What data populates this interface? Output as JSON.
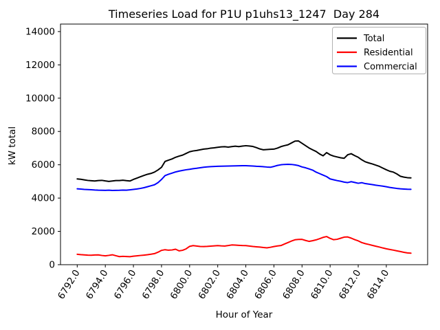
{
  "title": "Timeseries Load for P1U p1uhs13_1247  Day 284",
  "chart_data": {
    "type": "line",
    "title": "Timeseries Load for P1U p1uhs13_1247  Day 284",
    "xlabel": "Hour of Year",
    "ylabel": "kW total",
    "xlim": [
      6790.81,
      6816.94
    ],
    "ylim": [
      0,
      14450
    ],
    "grid": false,
    "legend_position": "upper right",
    "x_tick_rotation_deg": 58,
    "x_ticks": {
      "values": [
        6792,
        6794,
        6796,
        6798,
        6800,
        6802,
        6804,
        6806,
        6808,
        6810,
        6812,
        6814
      ],
      "labels": [
        "6792.0",
        "6794.0",
        "6796.0",
        "6798.0",
        "6800.0",
        "6802.0",
        "6804.0",
        "6806.0",
        "6808.0",
        "6810.0",
        "6812.0",
        "6814.0"
      ]
    },
    "y_ticks": {
      "values": [
        0,
        2000,
        4000,
        6000,
        8000,
        10000,
        12000,
        14000
      ],
      "labels": [
        "0",
        "2000",
        "4000",
        "6000",
        "8000",
        "10000",
        "12000",
        "14000"
      ]
    },
    "x_start": 6792.0,
    "x_step": 0.25,
    "n_points": 96,
    "series": [
      {
        "name": "Total",
        "color": "#000000",
        "values": [
          5150,
          5130,
          5095,
          5060,
          5040,
          5025,
          5050,
          5065,
          5030,
          5000,
          5025,
          5050,
          5050,
          5075,
          5045,
          5025,
          5120,
          5200,
          5280,
          5360,
          5430,
          5480,
          5560,
          5690,
          5850,
          6200,
          6280,
          6350,
          6450,
          6520,
          6580,
          6680,
          6780,
          6830,
          6860,
          6900,
          6940,
          6960,
          7000,
          7020,
          7050,
          7075,
          7085,
          7060,
          7090,
          7115,
          7090,
          7120,
          7145,
          7125,
          7100,
          7030,
          6950,
          6900,
          6915,
          6930,
          6940,
          7000,
          7090,
          7150,
          7200,
          7310,
          7420,
          7430,
          7290,
          7150,
          7010,
          6900,
          6800,
          6650,
          6540,
          6730,
          6600,
          6520,
          6470,
          6420,
          6390,
          6600,
          6665,
          6550,
          6450,
          6300,
          6180,
          6110,
          6050,
          5980,
          5905,
          5800,
          5700,
          5610,
          5560,
          5450,
          5310,
          5260,
          5225,
          5215
        ]
      },
      {
        "name": "Residential",
        "color": "#ff0000",
        "values": [
          625,
          605,
          590,
          575,
          570,
          585,
          590,
          555,
          530,
          560,
          595,
          540,
          485,
          500,
          490,
          480,
          510,
          530,
          555,
          575,
          600,
          630,
          665,
          750,
          860,
          900,
          870,
          885,
          930,
          830,
          865,
          950,
          1100,
          1145,
          1120,
          1095,
          1090,
          1100,
          1115,
          1130,
          1145,
          1130,
          1120,
          1150,
          1185,
          1175,
          1160,
          1150,
          1145,
          1120,
          1095,
          1075,
          1060,
          1030,
          1010,
          1045,
          1090,
          1125,
          1150,
          1240,
          1330,
          1420,
          1495,
          1515,
          1520,
          1455,
          1400,
          1440,
          1490,
          1560,
          1640,
          1690,
          1580,
          1500,
          1525,
          1590,
          1655,
          1665,
          1595,
          1505,
          1430,
          1330,
          1265,
          1215,
          1160,
          1110,
          1060,
          1005,
          955,
          915,
          875,
          830,
          790,
          745,
          705,
          690
        ]
      },
      {
        "name": "Commercial",
        "color": "#0000ff",
        "values": [
          4555,
          4540,
          4520,
          4510,
          4500,
          4485,
          4475,
          4470,
          4465,
          4475,
          4460,
          4465,
          4470,
          4480,
          4475,
          4495,
          4520,
          4545,
          4580,
          4625,
          4680,
          4740,
          4800,
          4930,
          5120,
          5350,
          5430,
          5500,
          5570,
          5620,
          5660,
          5700,
          5730,
          5765,
          5790,
          5820,
          5850,
          5875,
          5890,
          5900,
          5910,
          5915,
          5920,
          5925,
          5930,
          5935,
          5940,
          5945,
          5945,
          5935,
          5925,
          5910,
          5900,
          5885,
          5865,
          5850,
          5900,
          5960,
          6000,
          6020,
          6030,
          6020,
          5990,
          5950,
          5870,
          5820,
          5750,
          5680,
          5560,
          5470,
          5380,
          5290,
          5150,
          5100,
          5050,
          5010,
          4960,
          4930,
          4985,
          4940,
          4890,
          4925,
          4870,
          4840,
          4810,
          4775,
          4745,
          4715,
          4680,
          4640,
          4610,
          4580,
          4555,
          4540,
          4530,
          4525
        ]
      }
    ]
  }
}
